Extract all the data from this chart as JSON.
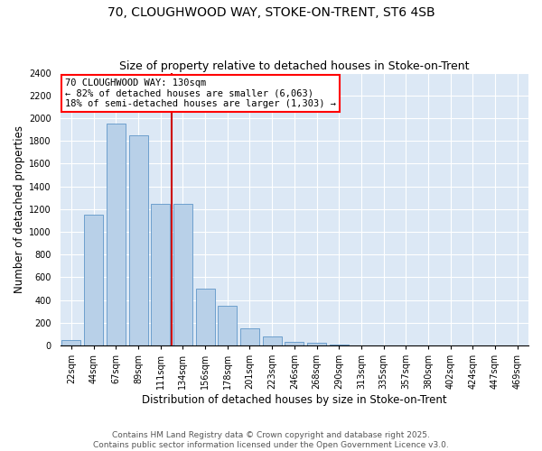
{
  "title1": "70, CLOUGHWOOD WAY, STOKE-ON-TRENT, ST6 4SB",
  "title2": "Size of property relative to detached houses in Stoke-on-Trent",
  "xlabel": "Distribution of detached houses by size in Stoke-on-Trent",
  "ylabel": "Number of detached properties",
  "categories": [
    "22sqm",
    "44sqm",
    "67sqm",
    "89sqm",
    "111sqm",
    "134sqm",
    "156sqm",
    "178sqm",
    "201sqm",
    "223sqm",
    "246sqm",
    "268sqm",
    "290sqm",
    "313sqm",
    "335sqm",
    "357sqm",
    "380sqm",
    "402sqm",
    "424sqm",
    "447sqm",
    "469sqm"
  ],
  "values": [
    50,
    1150,
    1950,
    1850,
    1250,
    1250,
    500,
    350,
    155,
    80,
    35,
    25,
    8,
    3,
    2,
    1,
    1,
    1,
    1,
    1,
    1
  ],
  "bar_color": "#b8d0e8",
  "bar_edge_color": "#5f96c8",
  "vline_color": "#cc0000",
  "annotation_line1": "70 CLOUGHWOOD WAY: 130sqm",
  "annotation_line2": "← 82% of detached houses are smaller (6,063)",
  "annotation_line3": "18% of semi-detached houses are larger (1,303) →",
  "ylim": [
    0,
    2400
  ],
  "yticks": [
    0,
    200,
    400,
    600,
    800,
    1000,
    1200,
    1400,
    1600,
    1800,
    2000,
    2200,
    2400
  ],
  "bg_color": "#dce8f5",
  "footer1": "Contains HM Land Registry data © Crown copyright and database right 2025.",
  "footer2": "Contains public sector information licensed under the Open Government Licence v3.0.",
  "title_fontsize": 10,
  "subtitle_fontsize": 9,
  "axis_label_fontsize": 8.5,
  "tick_fontsize": 7,
  "footer_fontsize": 6.5,
  "annot_fontsize": 7.5
}
